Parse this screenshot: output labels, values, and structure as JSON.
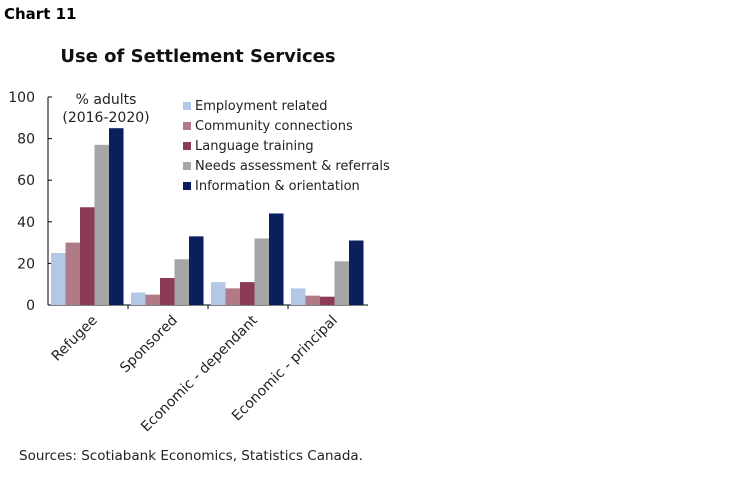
{
  "header": {
    "chart_label": "Chart 11"
  },
  "chart_data": {
    "type": "bar",
    "title": "Use of Settlement Services",
    "ylabel": "% adults\n(2016-2020)",
    "ylabel_lines": [
      "% adults",
      "(2016-2020)"
    ],
    "xlabel": "",
    "ylim": [
      0,
      100
    ],
    "yticks": [
      0,
      20,
      40,
      60,
      80,
      100
    ],
    "grid": false,
    "legend_position": "top-right",
    "categories": [
      "Refugee",
      "Sponsored",
      "Economic - dependant",
      "Economic - principal"
    ],
    "series": [
      {
        "name": "Employment related",
        "color": "#b4c7e7",
        "values": [
          25,
          6,
          11,
          8
        ]
      },
      {
        "name": "Community connections",
        "color": "#b07a86",
        "values": [
          30,
          5,
          8,
          4.5
        ]
      },
      {
        "name": "Language training",
        "color": "#8c3b55",
        "values": [
          47,
          13,
          11,
          4
        ]
      },
      {
        "name": "Needs assessment & referrals",
        "color": "#a6a6a6",
        "values": [
          77,
          22,
          32,
          21
        ]
      },
      {
        "name": "Information & orientation",
        "color": "#0b1f5e",
        "values": [
          85,
          33,
          44,
          31
        ]
      }
    ]
  },
  "footer": {
    "source": "Sources: Scotiabank Economics, Statistics Canada."
  }
}
